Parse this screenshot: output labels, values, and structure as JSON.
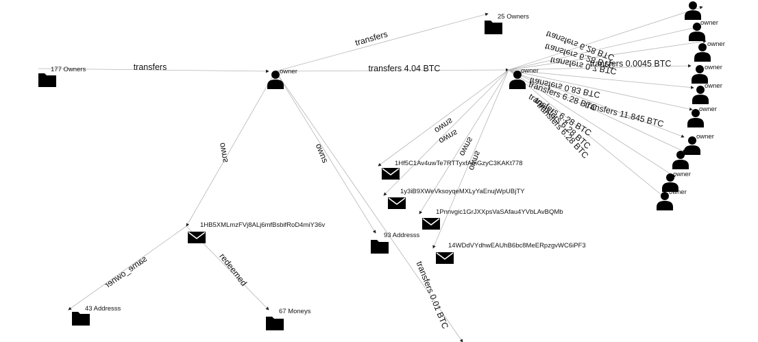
{
  "graph": {
    "nodes": [
      {
        "id": "n177",
        "label": "177 Owners",
        "kind": "folder"
      },
      {
        "id": "n25",
        "label": "25 Owners",
        "kind": "folder"
      },
      {
        "id": "o1",
        "label": "owner",
        "kind": "person"
      },
      {
        "id": "o2",
        "label": "owner",
        "kind": "person"
      },
      {
        "id": "r0",
        "label": "",
        "kind": "person"
      },
      {
        "id": "r1",
        "label": "owner",
        "kind": "person"
      },
      {
        "id": "r2",
        "label": "owner",
        "kind": "person"
      },
      {
        "id": "r3",
        "label": "owner",
        "kind": "person"
      },
      {
        "id": "r4",
        "label": "owner",
        "kind": "person"
      },
      {
        "id": "r5",
        "label": "owner",
        "kind": "person"
      },
      {
        "id": "r6",
        "label": "owner",
        "kind": "person"
      },
      {
        "id": "r7",
        "label": "owner",
        "kind": "person"
      },
      {
        "id": "r8",
        "label": "owner",
        "kind": "person"
      },
      {
        "id": "r9",
        "label": "owner",
        "kind": "person"
      },
      {
        "id": "a1",
        "label": "1Hf5C1Av4uwTe7RTTyxfAmGzyC3KAKt778",
        "kind": "address"
      },
      {
        "id": "a2",
        "label": "1y3iB9XWeVksoyqeMXLyYaEnujWpUBjTY",
        "kind": "address"
      },
      {
        "id": "a3",
        "label": "1Pnnvgic1GrJXXpsVaSAfau4YVbLAvBQMb",
        "kind": "address"
      },
      {
        "id": "a4",
        "label": "14WDdVYdhwEAUhB6bc8MeERpzgvWC6iPF3",
        "kind": "address"
      },
      {
        "id": "ahb",
        "label": "1HB5XMLmzFVj8ALj6mfBsbifRoD4miY36v",
        "kind": "address"
      },
      {
        "id": "n93",
        "label": "93 Addresss",
        "kind": "folder"
      },
      {
        "id": "n43",
        "label": "43 Addresss",
        "kind": "folder"
      },
      {
        "id": "n67",
        "label": "67 Moneys",
        "kind": "folder"
      }
    ],
    "edges": [
      {
        "from": "n177",
        "to": "o1",
        "label": "transfers"
      },
      {
        "from": "o1",
        "to": "n25",
        "label": "transfers"
      },
      {
        "from": "o1",
        "to": "o2",
        "label": "transfers 4.04 BTC"
      },
      {
        "from": "o1",
        "to": "ahb",
        "label": "owns"
      },
      {
        "from": "o1",
        "to": "n93",
        "label": "owns"
      },
      {
        "from": "o1",
        "to": "bottom",
        "label": "transfers 0.01 BTC"
      },
      {
        "from": "ahb",
        "to": "n43",
        "label": "same_owner"
      },
      {
        "from": "ahb",
        "to": "n67",
        "label": "redeemed"
      },
      {
        "from": "o2",
        "to": "a1",
        "label": "owns"
      },
      {
        "from": "o2",
        "to": "a2",
        "label": "owns"
      },
      {
        "from": "o2",
        "to": "a3",
        "label": "owns"
      },
      {
        "from": "o2",
        "to": "a4",
        "label": "owns"
      },
      {
        "from": "o2",
        "to": "r0",
        "label": "transfers 6.28 BTC"
      },
      {
        "from": "o2",
        "to": "r1",
        "label": "transfers 6.28 BTC"
      },
      {
        "from": "o2",
        "to": "r2",
        "label": "transfers 0.7 BTC"
      },
      {
        "from": "o2",
        "to": "r3",
        "label": "transfers 0.0045 BTC"
      },
      {
        "from": "o2",
        "to": "r4",
        "label": "transfers 0.83 BTC"
      },
      {
        "from": "o2",
        "to": "r5",
        "label": "transfers 6.28 BTC"
      },
      {
        "from": "o2",
        "to": "r6",
        "label": "transfers 11.845 BTC"
      },
      {
        "from": "o2",
        "to": "r7",
        "label": "transfers 6.28 BTC"
      },
      {
        "from": "o2",
        "to": "r8",
        "label": "transfers 6.28 BTC"
      },
      {
        "from": "o2",
        "to": "r9",
        "label": "transfers 6.28 BTC"
      }
    ]
  }
}
